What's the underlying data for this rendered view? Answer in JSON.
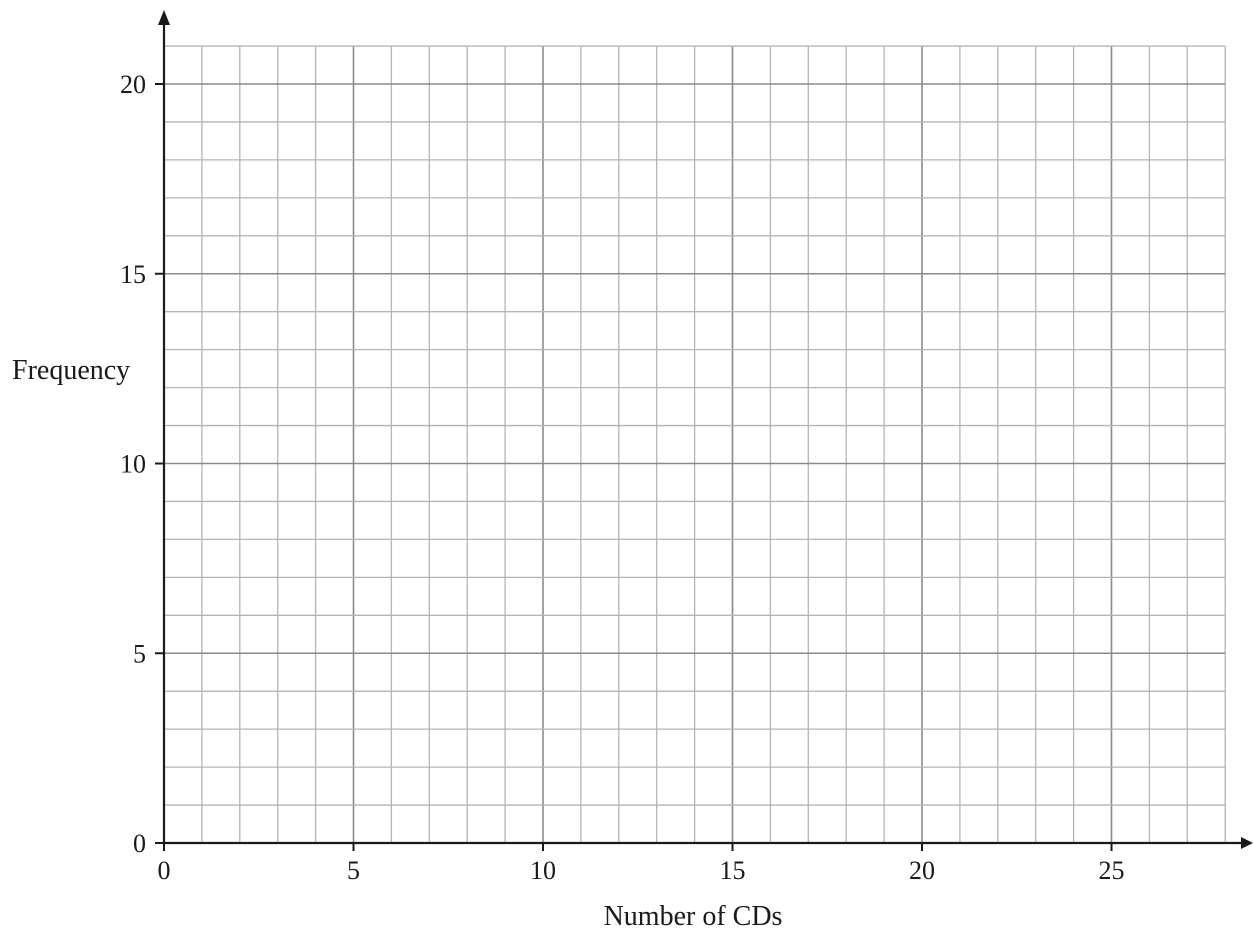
{
  "chart_data": {
    "type": "bar",
    "title": "",
    "xlabel": "Number of CDs",
    "ylabel": "Frequency",
    "xlim": [
      0,
      28
    ],
    "ylim": [
      0,
      21
    ],
    "x_ticks": [
      "0",
      "5",
      "10",
      "15",
      "20",
      "25"
    ],
    "y_ticks": [
      "0",
      "5",
      "10",
      "15",
      "20"
    ],
    "grid": true,
    "series": []
  }
}
